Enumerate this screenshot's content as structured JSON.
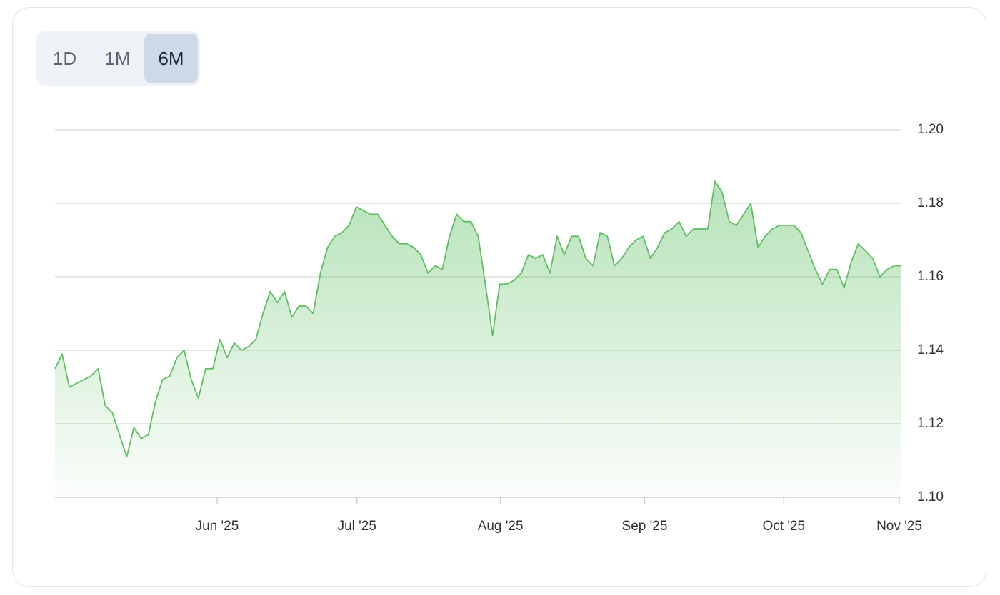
{
  "range_buttons": {
    "options": [
      "1D",
      "1M",
      "6M"
    ],
    "selected": 2
  },
  "chart_data": {
    "type": "area",
    "color": "#5cbf60",
    "values": [
      1.135,
      1.139,
      1.13,
      1.131,
      1.132,
      1.133,
      1.135,
      1.125,
      1.123,
      1.117,
      1.111,
      1.119,
      1.116,
      1.117,
      1.126,
      1.132,
      1.133,
      1.138,
      1.14,
      1.132,
      1.127,
      1.135,
      1.135,
      1.143,
      1.138,
      1.142,
      1.14,
      1.141,
      1.143,
      1.15,
      1.156,
      1.153,
      1.156,
      1.149,
      1.152,
      1.152,
      1.15,
      1.161,
      1.168,
      1.171,
      1.172,
      1.174,
      1.179,
      1.178,
      1.177,
      1.177,
      1.174,
      1.171,
      1.169,
      1.169,
      1.168,
      1.166,
      1.161,
      1.163,
      1.162,
      1.171,
      1.177,
      1.175,
      1.175,
      1.171,
      1.158,
      1.144,
      1.158,
      1.158,
      1.159,
      1.161,
      1.166,
      1.165,
      1.166,
      1.161,
      1.171,
      1.166,
      1.171,
      1.171,
      1.165,
      1.163,
      1.172,
      1.171,
      1.163,
      1.165,
      1.168,
      1.17,
      1.171,
      1.165,
      1.168,
      1.172,
      1.173,
      1.175,
      1.171,
      1.173,
      1.173,
      1.173,
      1.186,
      1.183,
      1.175,
      1.174,
      1.177,
      1.18,
      1.168,
      1.171,
      1.173,
      1.174,
      1.174,
      1.174,
      1.172,
      1.167,
      1.162,
      1.158,
      1.162,
      1.162,
      1.157,
      1.164,
      1.169,
      1.167,
      1.165,
      1.16,
      1.162,
      1.163,
      1.163
    ],
    "xlim": [
      0,
      118
    ],
    "xticks": [
      {
        "value": 22.6,
        "label": "Jun '25"
      },
      {
        "value": 42.1,
        "label": "Jul '25"
      },
      {
        "value": 62.1,
        "label": "Aug '25"
      },
      {
        "value": 82.2,
        "label": "Sep '25"
      },
      {
        "value": 101.6,
        "label": "Oct '25"
      },
      {
        "value": 117.7,
        "label": "Nov '25"
      }
    ],
    "ylim": [
      1.1,
      1.2
    ],
    "yticks": [
      {
        "value": 1.1,
        "label": "1.10"
      },
      1.12,
      1.14,
      1.16,
      1.18,
      {
        "value": 1.2,
        "label": "1.20"
      }
    ],
    "grid": true
  }
}
